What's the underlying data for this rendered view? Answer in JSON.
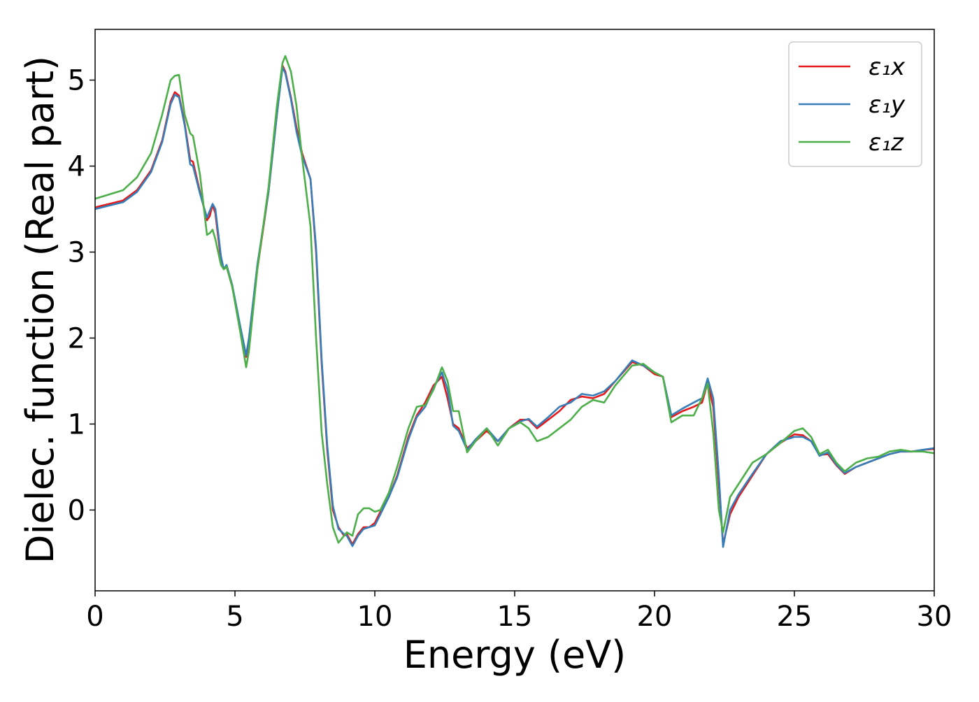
{
  "chart_data": {
    "type": "line",
    "xlabel": "Energy (eV)",
    "ylabel": "Dielec. function (Real part)",
    "x": [
      0,
      1,
      1.5,
      2,
      2.4,
      2.7,
      2.85,
      3,
      3.2,
      3.4,
      3.5,
      3.75,
      4,
      4.1,
      4.2,
      4.3,
      4.5,
      4.6,
      4.7,
      4.9,
      5.2,
      5.4,
      5.5,
      5.8,
      6.2,
      6.5,
      6.7,
      6.8,
      7,
      7.2,
      7.4,
      7.7,
      7.9,
      8.1,
      8.3,
      8.5,
      8.7,
      8.9,
      9,
      9.2,
      9.4,
      9.6,
      9.8,
      10,
      10.2,
      10.5,
      10.8,
      11.2,
      11.5,
      11.8,
      12.1,
      12.4,
      12.6,
      12.8,
      13,
      13.3,
      13.6,
      14,
      14.4,
      14.8,
      15.2,
      15.5,
      15.8,
      16.2,
      16.6,
      17,
      17.4,
      17.8,
      18.2,
      18.6,
      19.2,
      19.6,
      20,
      20.3,
      20.6,
      21,
      21.4,
      21.7,
      21.9,
      22.1,
      22.3,
      22.45,
      22.7,
      23,
      23.5,
      24,
      24.5,
      25,
      25.3,
      25.6,
      25.9,
      26.2,
      26.5,
      26.8,
      27.2,
      27.6,
      28,
      28.4,
      28.8,
      29.2,
      29.6,
      30
    ],
    "series": [
      {
        "name": "ε₁x",
        "color": "#e41a1c",
        "values": [
          3.52,
          3.6,
          3.72,
          3.95,
          4.3,
          4.75,
          4.86,
          4.82,
          4.5,
          4.07,
          4.05,
          3.7,
          3.37,
          3.42,
          3.55,
          3.45,
          2.9,
          2.8,
          2.83,
          2.6,
          2.1,
          1.78,
          1.95,
          2.8,
          3.7,
          4.6,
          5.17,
          5.1,
          4.8,
          4.45,
          4.15,
          3.85,
          3.0,
          1.7,
          0.7,
          0.0,
          -0.2,
          -0.3,
          -0.28,
          -0.4,
          -0.28,
          -0.2,
          -0.2,
          -0.15,
          -0.02,
          0.15,
          0.4,
          0.85,
          1.1,
          1.25,
          1.45,
          1.55,
          1.3,
          1.0,
          0.95,
          0.72,
          0.8,
          0.92,
          0.8,
          0.95,
          1.05,
          1.05,
          0.95,
          1.05,
          1.15,
          1.28,
          1.32,
          1.3,
          1.35,
          1.5,
          1.72,
          1.68,
          1.58,
          1.55,
          1.08,
          1.15,
          1.2,
          1.25,
          1.48,
          1.2,
          0.3,
          -0.4,
          -0.05,
          0.15,
          0.4,
          0.65,
          0.78,
          0.88,
          0.87,
          0.8,
          0.64,
          0.65,
          0.52,
          0.42,
          0.5,
          0.55,
          0.6,
          0.65,
          0.68,
          0.68,
          0.7,
          0.71
        ]
      },
      {
        "name": "ε₁y",
        "color": "#377eb8",
        "values": [
          3.5,
          3.58,
          3.7,
          3.93,
          4.28,
          4.72,
          4.83,
          4.8,
          4.48,
          4.02,
          4.0,
          3.68,
          3.4,
          3.48,
          3.56,
          3.5,
          2.95,
          2.8,
          2.85,
          2.62,
          2.12,
          1.8,
          2.0,
          2.85,
          3.7,
          4.6,
          5.15,
          5.08,
          4.78,
          4.4,
          4.12,
          3.85,
          3.05,
          1.75,
          0.75,
          0.05,
          -0.22,
          -0.28,
          -0.3,
          -0.42,
          -0.3,
          -0.22,
          -0.2,
          -0.18,
          -0.05,
          0.15,
          0.38,
          0.82,
          1.08,
          1.2,
          1.42,
          1.6,
          1.4,
          0.98,
          0.92,
          0.7,
          0.82,
          0.95,
          0.8,
          0.95,
          1.03,
          1.06,
          0.97,
          1.08,
          1.2,
          1.25,
          1.35,
          1.33,
          1.38,
          1.5,
          1.74,
          1.68,
          1.6,
          1.55,
          1.1,
          1.18,
          1.25,
          1.3,
          1.53,
          1.3,
          0.4,
          -0.43,
          0.0,
          0.18,
          0.42,
          0.65,
          0.8,
          0.85,
          0.85,
          0.8,
          0.63,
          0.67,
          0.53,
          0.43,
          0.5,
          0.55,
          0.6,
          0.65,
          0.68,
          0.68,
          0.7,
          0.72
        ]
      },
      {
        "name": "ε₁z",
        "color": "#4daf4a",
        "values": [
          3.62,
          3.72,
          3.87,
          4.15,
          4.6,
          5.0,
          5.05,
          5.06,
          4.6,
          4.38,
          4.35,
          3.9,
          3.2,
          3.22,
          3.26,
          3.15,
          2.85,
          2.8,
          2.83,
          2.6,
          2.05,
          1.66,
          1.85,
          2.8,
          3.75,
          4.7,
          5.2,
          5.28,
          5.1,
          4.7,
          4.1,
          3.3,
          2.0,
          0.9,
          0.3,
          -0.2,
          -0.38,
          -0.3,
          -0.26,
          -0.3,
          -0.05,
          0.02,
          0.02,
          -0.02,
          0.0,
          0.2,
          0.5,
          0.95,
          1.2,
          1.22,
          1.4,
          1.66,
          1.5,
          1.15,
          1.15,
          0.67,
          0.8,
          0.95,
          0.75,
          0.95,
          1.02,
          0.95,
          0.8,
          0.85,
          0.95,
          1.05,
          1.2,
          1.28,
          1.25,
          1.45,
          1.68,
          1.7,
          1.6,
          1.55,
          1.02,
          1.1,
          1.1,
          1.3,
          1.47,
          0.9,
          0.0,
          -0.26,
          0.15,
          0.3,
          0.55,
          0.65,
          0.78,
          0.92,
          0.95,
          0.85,
          0.65,
          0.7,
          0.55,
          0.45,
          0.55,
          0.6,
          0.62,
          0.68,
          0.7,
          0.68,
          0.68,
          0.66
        ]
      }
    ],
    "xlim": [
      0,
      30
    ],
    "ylim": [
      -0.94,
      5.59
    ],
    "xticks": [
      0,
      5,
      10,
      15,
      20,
      25,
      30
    ],
    "yticks": [
      0,
      1,
      2,
      3,
      4,
      5
    ],
    "grid": false,
    "legend": "upper right"
  }
}
